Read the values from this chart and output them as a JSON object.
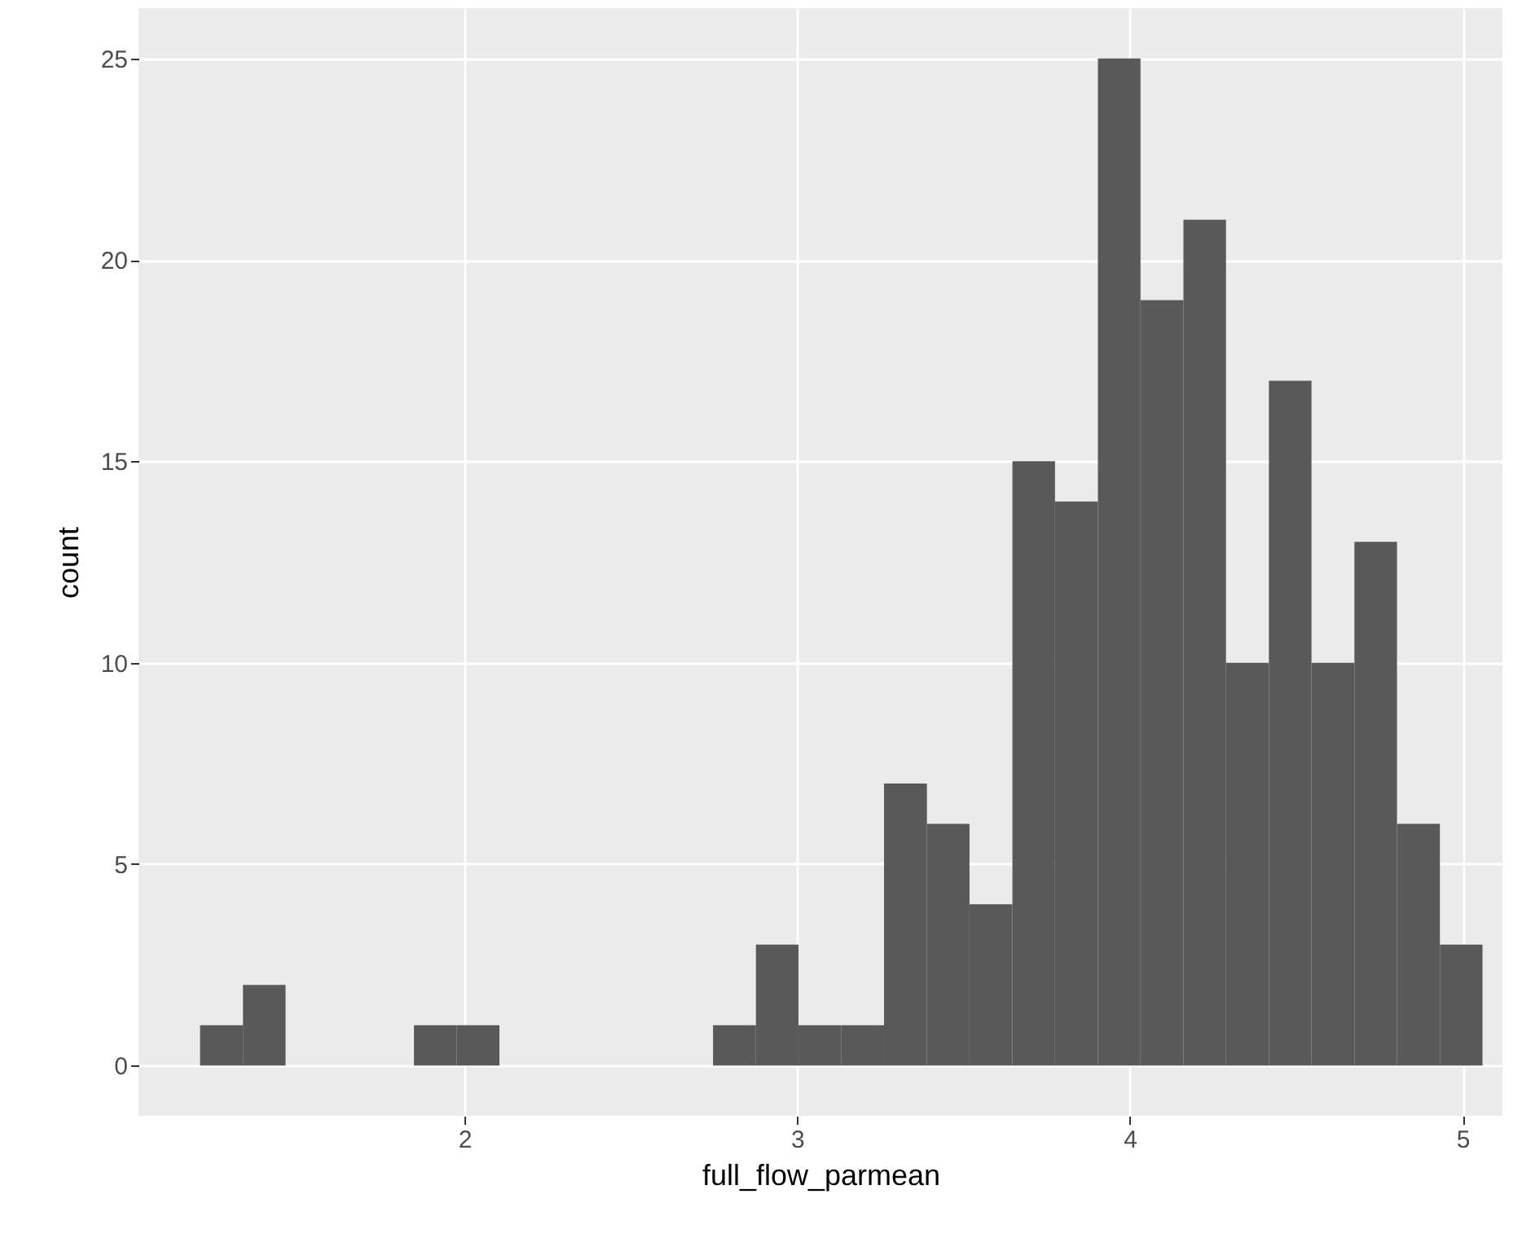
{
  "chart_data": {
    "type": "histogram",
    "xlabel": "full_flow_parmean",
    "ylabel": "count",
    "bins": [
      1.205,
      1.334,
      1.462,
      1.591,
      1.719,
      1.848,
      1.976,
      2.105,
      2.233,
      2.362,
      2.49,
      2.619,
      2.747,
      2.876,
      3.004,
      3.133,
      3.261,
      3.39,
      3.518,
      3.647,
      3.775,
      3.904,
      4.032,
      4.161,
      4.289,
      4.418,
      4.546,
      4.675,
      4.803,
      4.932,
      5.06
    ],
    "values": [
      1,
      2,
      0,
      0,
      0,
      1,
      1,
      0,
      0,
      0,
      0,
      0,
      1,
      3,
      1,
      1,
      7,
      6,
      4,
      15,
      14,
      25,
      19,
      21,
      10,
      17,
      10,
      13,
      6,
      3
    ],
    "color": "#595959",
    "xlim": [
      1.02,
      5.12
    ],
    "ylim": [
      -1.25,
      26.25
    ],
    "xticks": [
      2,
      3,
      4,
      5
    ],
    "yticks": [
      0,
      5,
      10,
      15,
      20,
      25
    ],
    "grid": true
  }
}
